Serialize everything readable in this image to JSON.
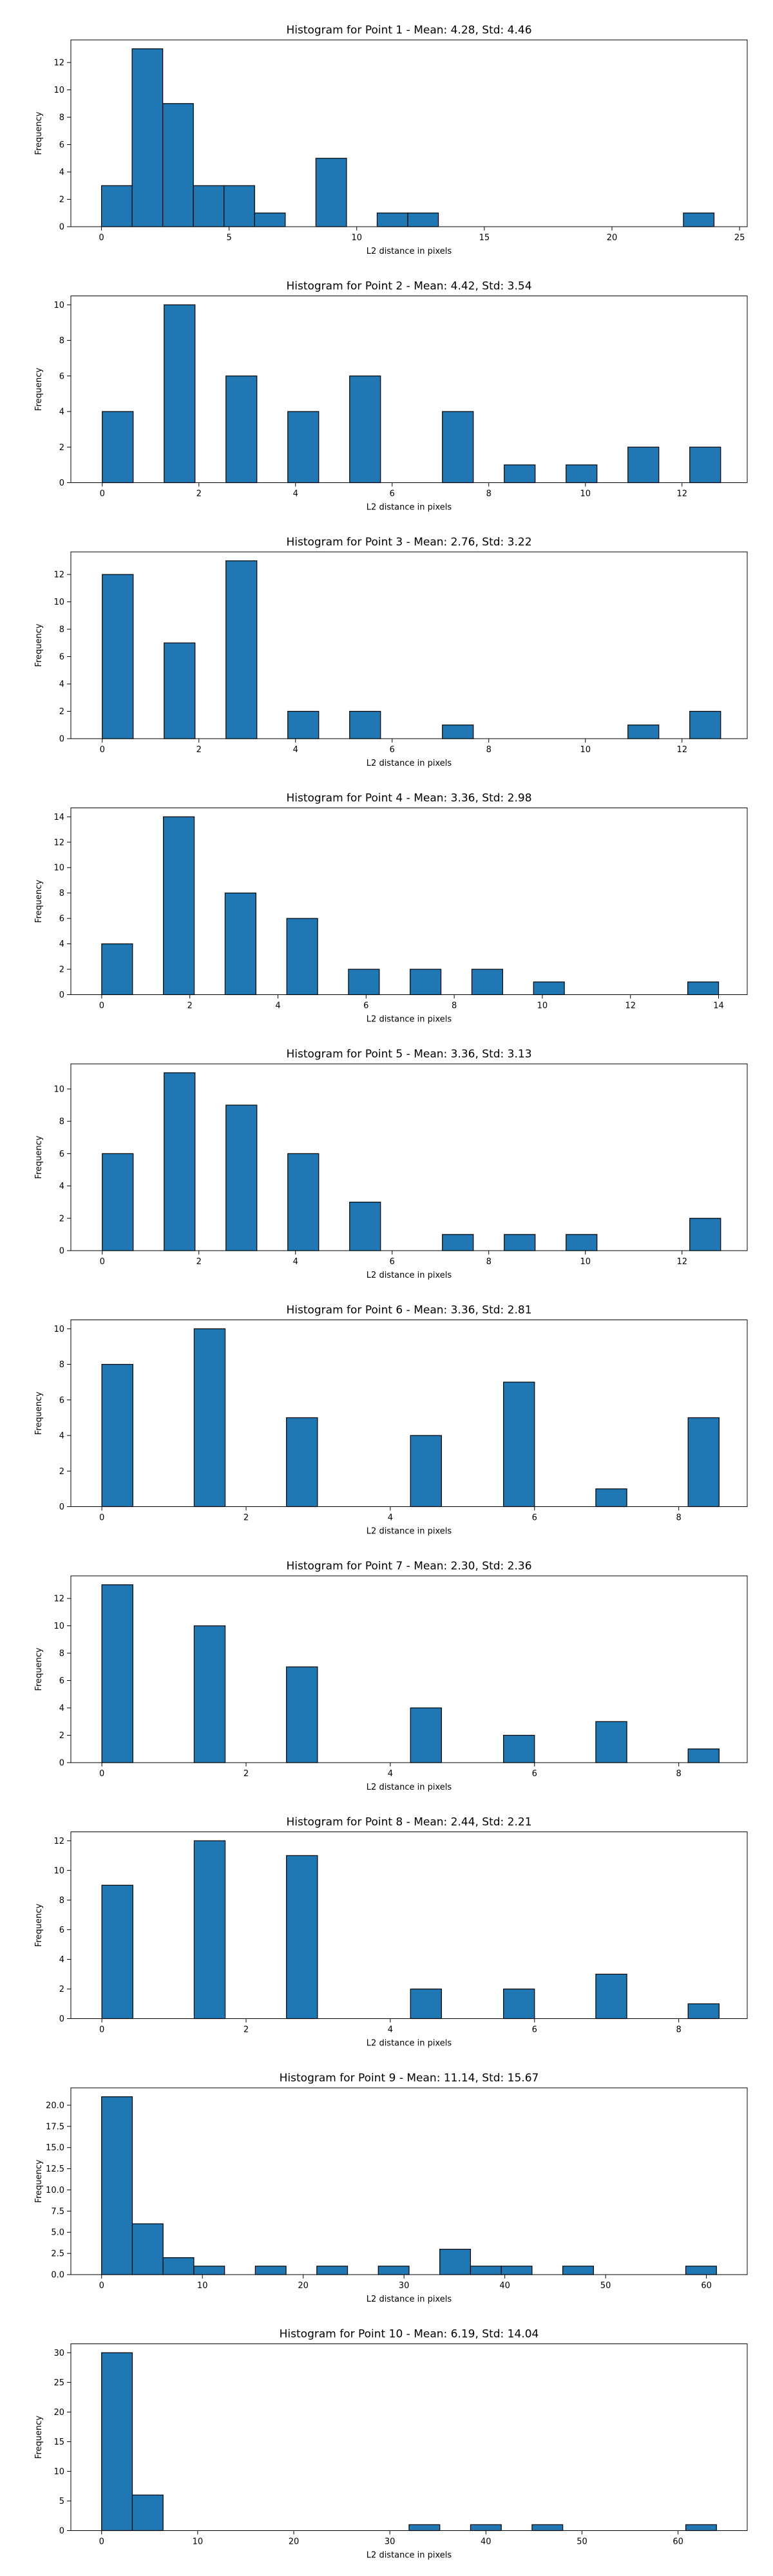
{
  "chart_data": [
    {
      "type": "bar",
      "title": "Histogram for Point 1 - Mean: 4.28, Std: 4.46",
      "xlabel": "L2 distance in pixels",
      "ylabel": "Frequency",
      "xlim": [
        -1.2,
        25.3
      ],
      "ylim": [
        0,
        13.65
      ],
      "xticks": [
        0,
        5,
        10,
        15,
        20,
        25
      ],
      "yticks": [
        0,
        2,
        4,
        6,
        8,
        10,
        12
      ],
      "bins": [
        {
          "x0": 0.0,
          "x1": 1.2,
          "count": 3
        },
        {
          "x0": 1.2,
          "x1": 2.4,
          "count": 13
        },
        {
          "x0": 2.4,
          "x1": 3.6,
          "count": 9
        },
        {
          "x0": 3.6,
          "x1": 4.8,
          "count": 3
        },
        {
          "x0": 4.8,
          "x1": 6.0,
          "count": 3
        },
        {
          "x0": 6.0,
          "x1": 7.2,
          "count": 1
        },
        {
          "x0": 8.4,
          "x1": 9.6,
          "count": 5
        },
        {
          "x0": 10.8,
          "x1": 12.0,
          "count": 1
        },
        {
          "x0": 12.0,
          "x1": 13.2,
          "count": 1
        },
        {
          "x0": 22.8,
          "x1": 24.0,
          "count": 1
        }
      ],
      "bar_color": "#1f77b4"
    },
    {
      "type": "bar",
      "title": "Histogram for Point 2 - Mean: 4.42, Std: 3.54",
      "xlabel": "L2 distance in pixels",
      "ylabel": "Frequency",
      "xlim": [
        -0.65,
        13.35
      ],
      "ylim": [
        0,
        10.5
      ],
      "xticks": [
        0,
        2,
        4,
        6,
        8,
        10,
        12
      ],
      "yticks": [
        0,
        2,
        4,
        6,
        8,
        10
      ],
      "bins": [
        {
          "x0": 0.0,
          "x1": 0.64,
          "count": 4
        },
        {
          "x0": 1.28,
          "x1": 1.92,
          "count": 10
        },
        {
          "x0": 2.56,
          "x1": 3.2,
          "count": 6
        },
        {
          "x0": 3.84,
          "x1": 4.48,
          "count": 4
        },
        {
          "x0": 5.12,
          "x1": 5.76,
          "count": 6
        },
        {
          "x0": 7.04,
          "x1": 7.68,
          "count": 4
        },
        {
          "x0": 8.32,
          "x1": 8.96,
          "count": 1
        },
        {
          "x0": 9.6,
          "x1": 10.24,
          "count": 1
        },
        {
          "x0": 10.88,
          "x1": 11.52,
          "count": 2
        },
        {
          "x0": 12.16,
          "x1": 12.8,
          "count": 2
        }
      ],
      "bar_color": "#1f77b4"
    },
    {
      "type": "bar",
      "title": "Histogram for Point 3 - Mean: 2.76, Std: 3.22",
      "xlabel": "L2 distance in pixels",
      "ylabel": "Frequency",
      "xlim": [
        -0.65,
        13.35
      ],
      "ylim": [
        0,
        13.65
      ],
      "xticks": [
        0,
        2,
        4,
        6,
        8,
        10,
        12
      ],
      "yticks": [
        0,
        2,
        4,
        6,
        8,
        10,
        12
      ],
      "bins": [
        {
          "x0": 0.0,
          "x1": 0.64,
          "count": 12
        },
        {
          "x0": 1.28,
          "x1": 1.92,
          "count": 7
        },
        {
          "x0": 2.56,
          "x1": 3.2,
          "count": 13
        },
        {
          "x0": 3.84,
          "x1": 4.48,
          "count": 2
        },
        {
          "x0": 5.12,
          "x1": 5.76,
          "count": 2
        },
        {
          "x0": 7.04,
          "x1": 7.68,
          "count": 1
        },
        {
          "x0": 10.88,
          "x1": 11.52,
          "count": 1
        },
        {
          "x0": 12.16,
          "x1": 12.8,
          "count": 2
        }
      ],
      "bar_color": "#1f77b4"
    },
    {
      "type": "bar",
      "title": "Histogram for Point 4 - Mean: 3.36, Std: 2.98",
      "xlabel": "L2 distance in pixels",
      "ylabel": "Frequency",
      "xlim": [
        -0.7,
        14.65
      ],
      "ylim": [
        0,
        14.7
      ],
      "xticks": [
        0,
        2,
        4,
        6,
        8,
        10,
        12,
        14
      ],
      "yticks": [
        0,
        2,
        4,
        6,
        8,
        10,
        12,
        14
      ],
      "bins": [
        {
          "x0": 0.0,
          "x1": 0.7,
          "count": 4
        },
        {
          "x0": 1.4,
          "x1": 2.1,
          "count": 14
        },
        {
          "x0": 2.8,
          "x1": 3.5,
          "count": 8
        },
        {
          "x0": 4.2,
          "x1": 4.9,
          "count": 6
        },
        {
          "x0": 5.6,
          "x1": 6.3,
          "count": 2
        },
        {
          "x0": 7.0,
          "x1": 7.7,
          "count": 2
        },
        {
          "x0": 8.4,
          "x1": 9.1,
          "count": 2
        },
        {
          "x0": 9.8,
          "x1": 10.5,
          "count": 1
        },
        {
          "x0": 13.3,
          "x1": 14.0,
          "count": 1
        }
      ],
      "bar_color": "#1f77b4"
    },
    {
      "type": "bar",
      "title": "Histogram for Point 5 - Mean: 3.36, Std: 3.13",
      "xlabel": "L2 distance in pixels",
      "ylabel": "Frequency",
      "xlim": [
        -0.65,
        13.35
      ],
      "ylim": [
        0,
        11.55
      ],
      "xticks": [
        0,
        2,
        4,
        6,
        8,
        10,
        12
      ],
      "yticks": [
        0,
        2,
        4,
        6,
        8,
        10
      ],
      "bins": [
        {
          "x0": 0.0,
          "x1": 0.64,
          "count": 6
        },
        {
          "x0": 1.28,
          "x1": 1.92,
          "count": 11
        },
        {
          "x0": 2.56,
          "x1": 3.2,
          "count": 9
        },
        {
          "x0": 3.84,
          "x1": 4.48,
          "count": 6
        },
        {
          "x0": 5.12,
          "x1": 5.76,
          "count": 3
        },
        {
          "x0": 7.04,
          "x1": 7.68,
          "count": 1
        },
        {
          "x0": 8.32,
          "x1": 8.96,
          "count": 1
        },
        {
          "x0": 9.6,
          "x1": 10.24,
          "count": 1
        },
        {
          "x0": 12.16,
          "x1": 12.8,
          "count": 2
        }
      ],
      "bar_color": "#1f77b4"
    },
    {
      "type": "bar",
      "title": "Histogram for Point 6 - Mean: 3.36, Std: 2.81",
      "xlabel": "L2 distance in pixels",
      "ylabel": "Frequency",
      "xlim": [
        -0.43,
        8.95
      ],
      "ylim": [
        0,
        10.5
      ],
      "xticks": [
        0,
        2,
        4,
        6,
        8
      ],
      "yticks": [
        0,
        2,
        4,
        6,
        8,
        10
      ],
      "bins": [
        {
          "x0": 0.0,
          "x1": 0.43,
          "count": 8
        },
        {
          "x0": 1.28,
          "x1": 1.71,
          "count": 10
        },
        {
          "x0": 2.56,
          "x1": 2.99,
          "count": 5
        },
        {
          "x0": 4.28,
          "x1": 4.71,
          "count": 4
        },
        {
          "x0": 5.57,
          "x1": 6.0,
          "count": 7
        },
        {
          "x0": 6.85,
          "x1": 7.28,
          "count": 1
        },
        {
          "x0": 8.13,
          "x1": 8.56,
          "count": 5
        }
      ],
      "bar_color": "#1f77b4"
    },
    {
      "type": "bar",
      "title": "Histogram for Point 7 - Mean: 2.30, Std: 2.36",
      "xlabel": "L2 distance in pixels",
      "ylabel": "Frequency",
      "xlim": [
        -0.43,
        8.95
      ],
      "ylim": [
        0,
        13.65
      ],
      "xticks": [
        0,
        2,
        4,
        6,
        8
      ],
      "yticks": [
        0,
        2,
        4,
        6,
        8,
        10,
        12
      ],
      "bins": [
        {
          "x0": 0.0,
          "x1": 0.43,
          "count": 13
        },
        {
          "x0": 1.28,
          "x1": 1.71,
          "count": 10
        },
        {
          "x0": 2.56,
          "x1": 2.99,
          "count": 7
        },
        {
          "x0": 4.28,
          "x1": 4.71,
          "count": 4
        },
        {
          "x0": 5.57,
          "x1": 6.0,
          "count": 2
        },
        {
          "x0": 6.85,
          "x1": 7.28,
          "count": 3
        },
        {
          "x0": 8.13,
          "x1": 8.56,
          "count": 1
        }
      ],
      "bar_color": "#1f77b4"
    },
    {
      "type": "bar",
      "title": "Histogram for Point 8 - Mean: 2.44, Std: 2.21",
      "xlabel": "L2 distance in pixels",
      "ylabel": "Frequency",
      "xlim": [
        -0.43,
        8.95
      ],
      "ylim": [
        0,
        12.6
      ],
      "xticks": [
        0,
        2,
        4,
        6,
        8
      ],
      "yticks": [
        0,
        2,
        4,
        6,
        8,
        10,
        12
      ],
      "bins": [
        {
          "x0": 0.0,
          "x1": 0.43,
          "count": 9
        },
        {
          "x0": 1.28,
          "x1": 1.71,
          "count": 12
        },
        {
          "x0": 2.56,
          "x1": 2.99,
          "count": 11
        },
        {
          "x0": 4.28,
          "x1": 4.71,
          "count": 2
        },
        {
          "x0": 5.57,
          "x1": 6.0,
          "count": 2
        },
        {
          "x0": 6.85,
          "x1": 7.28,
          "count": 3
        },
        {
          "x0": 8.13,
          "x1": 8.56,
          "count": 1
        }
      ],
      "bar_color": "#1f77b4"
    },
    {
      "type": "bar",
      "title": "Histogram for Point 9 - Mean: 11.14, Std: 15.67",
      "xlabel": "L2 distance in pixels",
      "ylabel": "Frequency",
      "xlim": [
        -3.05,
        64.05
      ],
      "ylim": [
        0,
        22.05
      ],
      "xticks": [
        0,
        10,
        20,
        30,
        40,
        50,
        60
      ],
      "yticks": [
        0,
        2.5,
        5.0,
        7.5,
        10.0,
        12.5,
        15.0,
        17.5,
        20.0
      ],
      "ytick_labels": [
        "0.0",
        "2.5",
        "5.0",
        "7.5",
        "10.0",
        "12.5",
        "15.0",
        "17.5",
        "20.0"
      ],
      "bins": [
        {
          "x0": 0.0,
          "x1": 3.05,
          "count": 21
        },
        {
          "x0": 3.05,
          "x1": 6.1,
          "count": 6
        },
        {
          "x0": 6.1,
          "x1": 9.15,
          "count": 2
        },
        {
          "x0": 9.15,
          "x1": 12.2,
          "count": 1
        },
        {
          "x0": 15.25,
          "x1": 18.3,
          "count": 1
        },
        {
          "x0": 21.35,
          "x1": 24.4,
          "count": 1
        },
        {
          "x0": 27.45,
          "x1": 30.5,
          "count": 1
        },
        {
          "x0": 33.55,
          "x1": 36.6,
          "count": 3
        },
        {
          "x0": 36.6,
          "x1": 39.65,
          "count": 1
        },
        {
          "x0": 39.65,
          "x1": 42.7,
          "count": 1
        },
        {
          "x0": 45.75,
          "x1": 48.8,
          "count": 1
        },
        {
          "x0": 57.95,
          "x1": 61.0,
          "count": 1
        }
      ],
      "bar_color": "#1f77b4"
    },
    {
      "type": "bar",
      "title": "Histogram for Point 10 - Mean: 6.19, Std: 14.04",
      "xlabel": "L2 distance in pixels",
      "ylabel": "Frequency",
      "xlim": [
        -3.2,
        67.2
      ],
      "ylim": [
        0,
        31.5
      ],
      "xticks": [
        0,
        10,
        20,
        30,
        40,
        50,
        60
      ],
      "yticks": [
        0,
        5,
        10,
        15,
        20,
        25,
        30
      ],
      "bins": [
        {
          "x0": 0.0,
          "x1": 3.2,
          "count": 30
        },
        {
          "x0": 3.2,
          "x1": 6.4,
          "count": 6
        },
        {
          "x0": 32.0,
          "x1": 35.2,
          "count": 1
        },
        {
          "x0": 38.4,
          "x1": 41.6,
          "count": 1
        },
        {
          "x0": 44.8,
          "x1": 48.0,
          "count": 1
        },
        {
          "x0": 60.8,
          "x1": 64.0,
          "count": 1
        }
      ],
      "bar_color": "#1f77b4"
    }
  ]
}
